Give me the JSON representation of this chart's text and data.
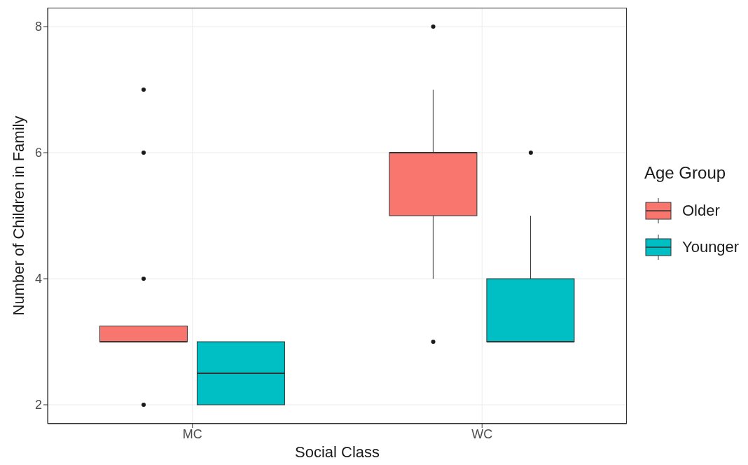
{
  "chart_data": {
    "type": "box",
    "categories": [
      "MC",
      "WC"
    ],
    "xlabel": "Social Class",
    "ylabel": "Number of Children in Family",
    "legend_title": "Age Group",
    "ylim": [
      1.7,
      8.3
    ],
    "yticks": [
      2,
      4,
      6,
      8
    ],
    "grid": true,
    "legend": "right",
    "series": [
      {
        "name": "Older",
        "color": "#f8766d",
        "boxes": [
          {
            "low": 3,
            "q1": 3,
            "median": 3,
            "q3": 3.25,
            "high": 3.25,
            "outliers": [
              2,
              4,
              6,
              7
            ]
          },
          {
            "low": 4,
            "q1": 5,
            "median": 6,
            "q3": 6,
            "high": 7,
            "outliers": [
              3,
              8
            ]
          }
        ]
      },
      {
        "name": "Younger",
        "color": "#00bfc4",
        "boxes": [
          {
            "low": 2,
            "q1": 2,
            "median": 2.5,
            "q3": 3,
            "high": 3
          },
          {
            "low": 3,
            "q1": 3,
            "median": 3,
            "q3": 4,
            "high": 5,
            "outliers": [
              6
            ]
          }
        ]
      }
    ]
  }
}
